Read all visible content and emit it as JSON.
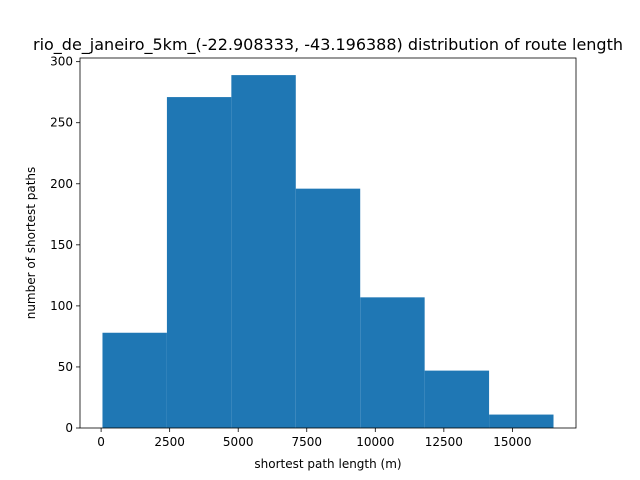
{
  "chart_data": {
    "type": "bar",
    "title": "rio_de_janeiro_5km_(-22.908333, -43.196388) distribution of route length",
    "xlabel": "shortest path length (m)",
    "ylabel": "number of shortest paths",
    "bins": [
      {
        "start": 50,
        "end": 2400,
        "count": 78
      },
      {
        "start": 2400,
        "end": 4750,
        "count": 271
      },
      {
        "start": 4750,
        "end": 7100,
        "count": 289
      },
      {
        "start": 7100,
        "end": 9450,
        "count": 196
      },
      {
        "start": 9450,
        "end": 11800,
        "count": 107
      },
      {
        "start": 11800,
        "end": 14150,
        "count": 47
      },
      {
        "start": 14150,
        "end": 16500,
        "count": 11
      }
    ],
    "xlim": [
      -770,
      17320
    ],
    "ylim": [
      0,
      303
    ],
    "xticks": [
      0,
      2500,
      5000,
      7500,
      10000,
      12500,
      15000
    ],
    "yticks": [
      0,
      50,
      100,
      150,
      200,
      250,
      300
    ],
    "grid": false,
    "bar_color": "#1f77b4"
  }
}
